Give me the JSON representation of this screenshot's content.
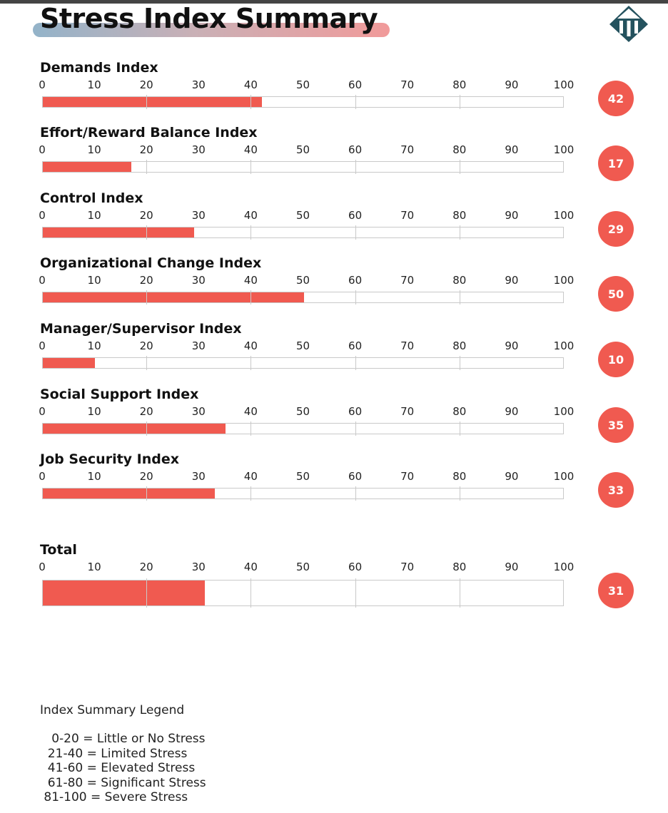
{
  "header": {
    "title": "Stress Index Summary",
    "logo_icon": "diamond-building-logo-icon"
  },
  "chart_data": {
    "type": "bar",
    "title": "Stress Index Summary",
    "orientation": "horizontal",
    "xlim": [
      0,
      100
    ],
    "ticks": [
      0,
      10,
      20,
      30,
      40,
      50,
      60,
      70,
      80,
      90,
      100
    ],
    "grid": true,
    "bar_color": "#f05a50",
    "badge_color": "#f05a50",
    "categories": [
      "Demands Index",
      "Effort/Reward Balance Index",
      "Control Index",
      "Organizational Change Index",
      "Manager/Supervisor Index",
      "Social Support Index",
      "Job Security Index",
      "Total"
    ],
    "values": [
      42,
      17,
      29,
      50,
      10,
      35,
      33,
      31
    ]
  },
  "legend": {
    "title": "Index Summary Legend",
    "items": [
      "   0-20 = Little or No Stress",
      "  21-40 = Limited Stress",
      "  41-60 = Elevated Stress",
      "  61-80 = Significant Stress",
      " 81-100 = Severe Stress"
    ]
  }
}
